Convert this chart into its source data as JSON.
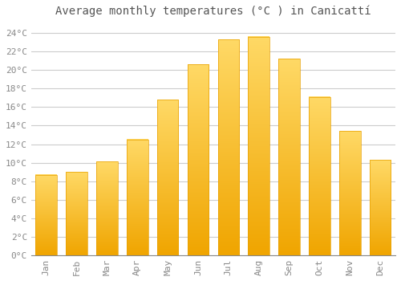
{
  "title": "Average monthly temperatures (°C ) in Canicattí",
  "months": [
    "Jan",
    "Feb",
    "Mar",
    "Apr",
    "May",
    "Jun",
    "Jul",
    "Aug",
    "Sep",
    "Oct",
    "Nov",
    "Dec"
  ],
  "values": [
    8.7,
    9.0,
    10.1,
    12.5,
    16.8,
    20.6,
    23.3,
    23.6,
    21.2,
    17.1,
    13.4,
    10.3
  ],
  "bar_color_top": "#FFD966",
  "bar_color_bottom": "#F0A500",
  "bar_edge_color": "#E8A000",
  "ylim": [
    0,
    25
  ],
  "yticks": [
    0,
    2,
    4,
    6,
    8,
    10,
    12,
    14,
    16,
    18,
    20,
    22,
    24
  ],
  "ytick_labels": [
    "0°C",
    "2°C",
    "4°C",
    "6°C",
    "8°C",
    "10°C",
    "12°C",
    "14°C",
    "16°C",
    "18°C",
    "20°C",
    "22°C",
    "24°C"
  ],
  "grid_color": "#cccccc",
  "bg_color": "#ffffff",
  "title_fontsize": 10,
  "tick_fontsize": 8,
  "bar_width": 0.7,
  "tick_color": "#888888"
}
